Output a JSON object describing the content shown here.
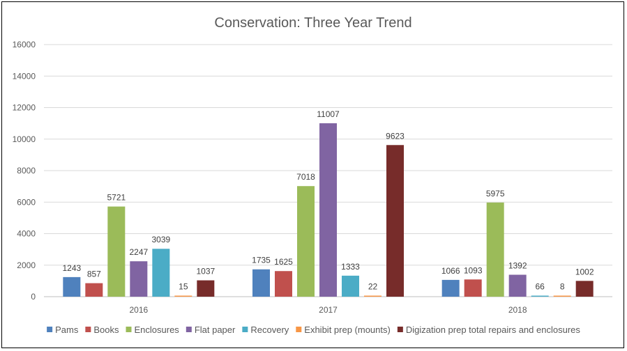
{
  "chart_data": {
    "type": "bar",
    "title": "Conservation: Three Year Trend",
    "xlabel": "",
    "ylabel": "",
    "categories": [
      "2016",
      "2017",
      "2018"
    ],
    "ylim": [
      0,
      16000
    ],
    "yticks": [
      0,
      2000,
      4000,
      6000,
      8000,
      10000,
      12000,
      14000,
      16000
    ],
    "grid": true,
    "legend_position": "bottom",
    "series": [
      {
        "name": "Pams",
        "color": "#4f81bd",
        "values": [
          1243,
          1735,
          1066
        ]
      },
      {
        "name": "Books",
        "color": "#c0504d",
        "values": [
          857,
          1625,
          1093
        ]
      },
      {
        "name": "Enclosures",
        "color": "#9bbb59",
        "values": [
          5721,
          7018,
          5975
        ]
      },
      {
        "name": "Flat paper",
        "color": "#8064a2",
        "values": [
          2247,
          11007,
          1392
        ]
      },
      {
        "name": "Recovery",
        "color": "#4bacc6",
        "values": [
          3039,
          1333,
          66
        ]
      },
      {
        "name": "Exhibit prep (mounts)",
        "color": "#f79646",
        "values": [
          15,
          22,
          8
        ]
      },
      {
        "name": "Digization prep total repairs and enclosures",
        "color": "#772c2a",
        "values": [
          1037,
          9623,
          1002
        ]
      }
    ]
  }
}
